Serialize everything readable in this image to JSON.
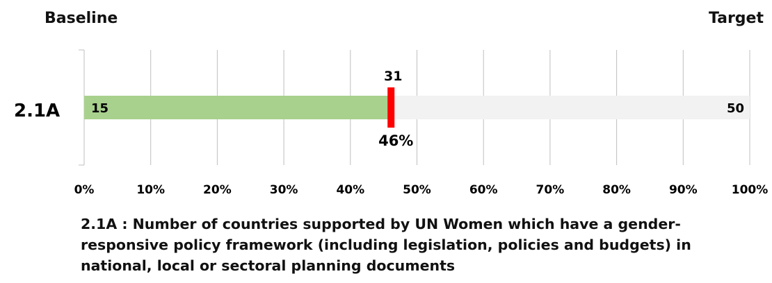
{
  "header": {
    "baseline_label": "Baseline",
    "target_label": "Target"
  },
  "chart_data": {
    "type": "bar",
    "orientation": "horizontal",
    "categories": [
      "2.1A"
    ],
    "baseline_value": 15,
    "target_value": 50,
    "current_value": 31,
    "current_percent": 46,
    "current_percent_label": "46%",
    "progress_fraction": 0.46,
    "xlim": [
      0,
      100
    ],
    "x_tick_labels": [
      "0%",
      "10%",
      "20%",
      "30%",
      "40%",
      "50%",
      "60%",
      "70%",
      "80%",
      "90%",
      "100%"
    ],
    "grid": true,
    "colors": {
      "progress_fill": "#a9d18e",
      "remaining_fill": "#f2f2f2",
      "marker": "#ff0000",
      "grid": "#bfbfbf"
    }
  },
  "caption": {
    "text": "2.1A : Number of countries supported by UN Women which have a gender-responsive policy framework (including legislation, policies and budgets) in national, local or sectoral planning documents"
  }
}
